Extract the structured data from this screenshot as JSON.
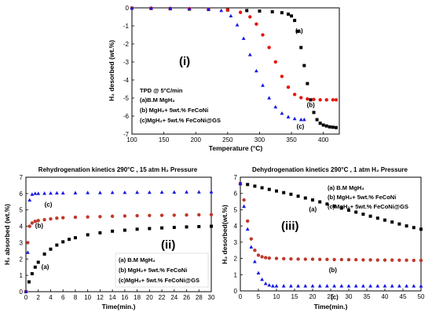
{
  "chart_data": [
    {
      "id": "p1",
      "type": "scatter",
      "panel_label": "(i)",
      "xlabel": "Temperature (°C)",
      "ylabel": "H₂ desorbed (wt.%)",
      "xlim": [
        100,
        425
      ],
      "ylim": [
        -7,
        0
      ],
      "xticks": [
        100,
        150,
        200,
        250,
        300,
        350,
        400
      ],
      "yticks": [
        -7,
        -6,
        -5,
        -4,
        -3,
        -2,
        -1,
        0
      ],
      "legend_position": "bottom-left",
      "legend": [
        "TPD @ 5°C/min",
        "(a)B.M MgH₂",
        "(b) MgH₂+ 5wt.% FeCoNi",
        "(c)MgH₂+ 5wt.% FeCoNi@GS"
      ],
      "series": [
        {
          "key": "a",
          "color": "#000000",
          "marker": "square",
          "label": "(a)",
          "label_at": [
            356,
            -1.4
          ],
          "x": [
            100,
            130,
            160,
            190,
            220,
            250,
            280,
            300,
            320,
            335,
            345,
            350,
            355,
            360,
            365,
            370,
            375,
            380,
            385,
            390,
            395,
            400,
            405,
            410,
            415,
            420
          ],
          "y": [
            -0.02,
            -0.03,
            -0.05,
            -0.07,
            -0.09,
            -0.12,
            -0.15,
            -0.18,
            -0.22,
            -0.27,
            -0.35,
            -0.45,
            -0.7,
            -1.3,
            -2.2,
            -3.2,
            -4.2,
            -5.1,
            -5.8,
            -6.2,
            -6.4,
            -6.5,
            -6.55,
            -6.6,
            -6.62,
            -6.64
          ]
        },
        {
          "key": "b",
          "color": "#e8160c",
          "marker": "circle",
          "label": "(b)",
          "label_at": [
            374,
            -5.5
          ],
          "x": [
            100,
            130,
            160,
            190,
            220,
            250,
            270,
            285,
            295,
            305,
            315,
            325,
            335,
            345,
            355,
            365,
            375,
            385,
            395,
            405,
            415,
            420
          ],
          "y": [
            -0.02,
            -0.03,
            -0.04,
            -0.05,
            -0.07,
            -0.12,
            -0.25,
            -0.5,
            -0.9,
            -1.5,
            -2.2,
            -3.0,
            -3.8,
            -4.4,
            -4.8,
            -4.98,
            -5.05,
            -5.08,
            -5.1,
            -5.1,
            -5.1,
            -5.1
          ]
        },
        {
          "key": "c",
          "color": "#1515e6",
          "marker": "triangle",
          "label": "(c)",
          "label_at": [
            358,
            -6.7
          ],
          "x": [
            100,
            130,
            160,
            190,
            220,
            240,
            255,
            265,
            275,
            285,
            295,
            305,
            315,
            325,
            335,
            345,
            355,
            365,
            370
          ],
          "y": [
            -0.02,
            -0.02,
            -0.03,
            -0.05,
            -0.08,
            -0.15,
            -0.45,
            -0.95,
            -1.7,
            -2.6,
            -3.5,
            -4.3,
            -5.0,
            -5.5,
            -5.85,
            -6.05,
            -6.15,
            -6.2,
            -6.2
          ]
        }
      ]
    },
    {
      "id": "p2",
      "type": "scatter",
      "panel_label": "(ii)",
      "title": "Rehydrogenation kinetics 290°C , 15 atm H₂ Pressure",
      "xlabel": "Time(min.)",
      "ylabel": "H₂ absorbed (wt.%)",
      "xlim": [
        0,
        30
      ],
      "ylim": [
        0,
        7
      ],
      "xticks": [
        0,
        2,
        4,
        6,
        8,
        10,
        12,
        14,
        16,
        18,
        20,
        22,
        24,
        26,
        28,
        30
      ],
      "yticks": [
        0,
        1,
        2,
        3,
        4,
        5,
        6,
        7
      ],
      "legend_position": "bottom-right",
      "legend": [
        "(a) B.M MgH₂",
        "(b) MgH₂+ 5wt.% FeCoNi",
        "(c)MgH₂+ 5wt.% FeCoNi@GS"
      ],
      "series": [
        {
          "key": "a",
          "color": "#000000",
          "marker": "square",
          "label": "(a)",
          "label_at": [
            2.5,
            1.4
          ],
          "x": [
            0,
            0.5,
            1,
            1.5,
            2,
            3,
            4,
            5,
            6,
            7,
            8,
            10,
            12,
            14,
            16,
            18,
            20,
            22,
            24,
            26,
            28,
            30
          ],
          "y": [
            0,
            0.6,
            1.1,
            1.5,
            1.8,
            2.3,
            2.6,
            2.85,
            3.05,
            3.2,
            3.3,
            3.48,
            3.6,
            3.7,
            3.76,
            3.82,
            3.86,
            3.9,
            3.93,
            3.96,
            3.98,
            4.0
          ]
        },
        {
          "key": "b",
          "color": "#c0392b",
          "marker": "circle",
          "label": "(b)",
          "label_at": [
            1.5,
            3.9
          ],
          "x": [
            0,
            0.3,
            0.6,
            1,
            1.5,
            2,
            3,
            4,
            5,
            6,
            8,
            10,
            12,
            14,
            16,
            18,
            20,
            22,
            24,
            26,
            28,
            30
          ],
          "y": [
            0,
            3.0,
            4.0,
            4.2,
            4.3,
            4.35,
            4.4,
            4.45,
            4.5,
            4.52,
            4.55,
            4.57,
            4.59,
            4.61,
            4.63,
            4.65,
            4.66,
            4.67,
            4.68,
            4.69,
            4.7,
            4.71
          ]
        },
        {
          "key": "c",
          "color": "#1515e6",
          "marker": "triangle",
          "label": "(c)",
          "label_at": [
            3.0,
            5.2
          ],
          "x": [
            0,
            0.3,
            0.6,
            1,
            1.5,
            2,
            3,
            4,
            5,
            6,
            8,
            10,
            12,
            14,
            16,
            18,
            20,
            22,
            24,
            26,
            28,
            30
          ],
          "y": [
            0,
            2.4,
            5.6,
            5.95,
            6.0,
            6.0,
            6.01,
            6.02,
            6.03,
            6.03,
            6.04,
            6.05,
            6.05,
            6.06,
            6.06,
            6.07,
            6.07,
            6.08,
            6.08,
            6.09,
            6.09,
            6.1
          ]
        }
      ]
    },
    {
      "id": "p3",
      "type": "scatter",
      "panel_label": "(iii)",
      "title": "Dehydrogenation kinetics 290°C , 1 atm H₂ Pressure",
      "xlabel": "Time(min.)",
      "ylabel": "H₂ desorbed(wt.%)",
      "xlim": [
        0,
        50
      ],
      "ylim": [
        0,
        7
      ],
      "xticks": [
        0,
        5,
        10,
        15,
        20,
        25,
        30,
        35,
        40,
        45,
        50
      ],
      "yticks": [
        0,
        1,
        2,
        3,
        4,
        5,
        6,
        7
      ],
      "legend_position": "top-right",
      "legend": [
        "(a) B.M MgH₂",
        "(b) MgH₂+ 5wt.% FeCoNi",
        "(c)MgH₂+ 5wt.% FeCoNi@GS"
      ],
      "series": [
        {
          "key": "a",
          "color": "#000000",
          "marker": "square",
          "label": "(a)",
          "label_at": [
            19,
            4.9
          ],
          "x": [
            0,
            2,
            4,
            6,
            8,
            10,
            12,
            14,
            16,
            18,
            20,
            22,
            24,
            26,
            28,
            30,
            32,
            34,
            36,
            38,
            40,
            42,
            44,
            46,
            48,
            50
          ],
          "y": [
            6.6,
            6.55,
            6.45,
            6.35,
            6.25,
            6.15,
            6.05,
            5.95,
            5.83,
            5.72,
            5.6,
            5.48,
            5.35,
            5.22,
            5.1,
            4.97,
            4.85,
            4.72,
            4.6,
            4.48,
            4.36,
            4.24,
            4.12,
            4.0,
            3.9,
            3.8
          ]
        },
        {
          "key": "b",
          "color": "#c0392b",
          "marker": "circle",
          "label": "(b)",
          "label_at": [
            24.5,
            1.15
          ],
          "x": [
            0,
            1,
            2,
            3,
            4,
            5,
            6,
            7,
            8,
            10,
            12,
            14,
            16,
            18,
            20,
            22,
            24,
            26,
            28,
            30,
            32,
            34,
            36,
            38,
            40,
            42,
            44,
            46,
            48,
            50
          ],
          "y": [
            6.6,
            5.6,
            4.3,
            3.2,
            2.5,
            2.2,
            2.1,
            2.05,
            2.02,
            2.0,
            1.98,
            1.97,
            1.96,
            1.95,
            1.95,
            1.94,
            1.94,
            1.93,
            1.93,
            1.92,
            1.92,
            1.91,
            1.91,
            1.9,
            1.9,
            1.9,
            1.89,
            1.89,
            1.88,
            1.88
          ]
        },
        {
          "key": "c",
          "color": "#1515e6",
          "marker": "triangle",
          "label": "(c)",
          "label_at": [
            25,
            -0.5
          ],
          "x": [
            0,
            1,
            2,
            3,
            4,
            5,
            6,
            7,
            8,
            9,
            10,
            12,
            14,
            16,
            18,
            20,
            22,
            24,
            26,
            28,
            30,
            32,
            34,
            36,
            38,
            40,
            42,
            44,
            46,
            48,
            50
          ],
          "y": [
            6.6,
            5.2,
            3.8,
            2.7,
            1.8,
            1.1,
            0.7,
            0.45,
            0.35,
            0.3,
            0.3,
            0.3,
            0.3,
            0.3,
            0.3,
            0.3,
            0.3,
            0.3,
            0.3,
            0.3,
            0.3,
            0.3,
            0.3,
            0.3,
            0.3,
            0.3,
            0.3,
            0.3,
            0.3,
            0.3,
            0.3
          ]
        }
      ]
    }
  ]
}
